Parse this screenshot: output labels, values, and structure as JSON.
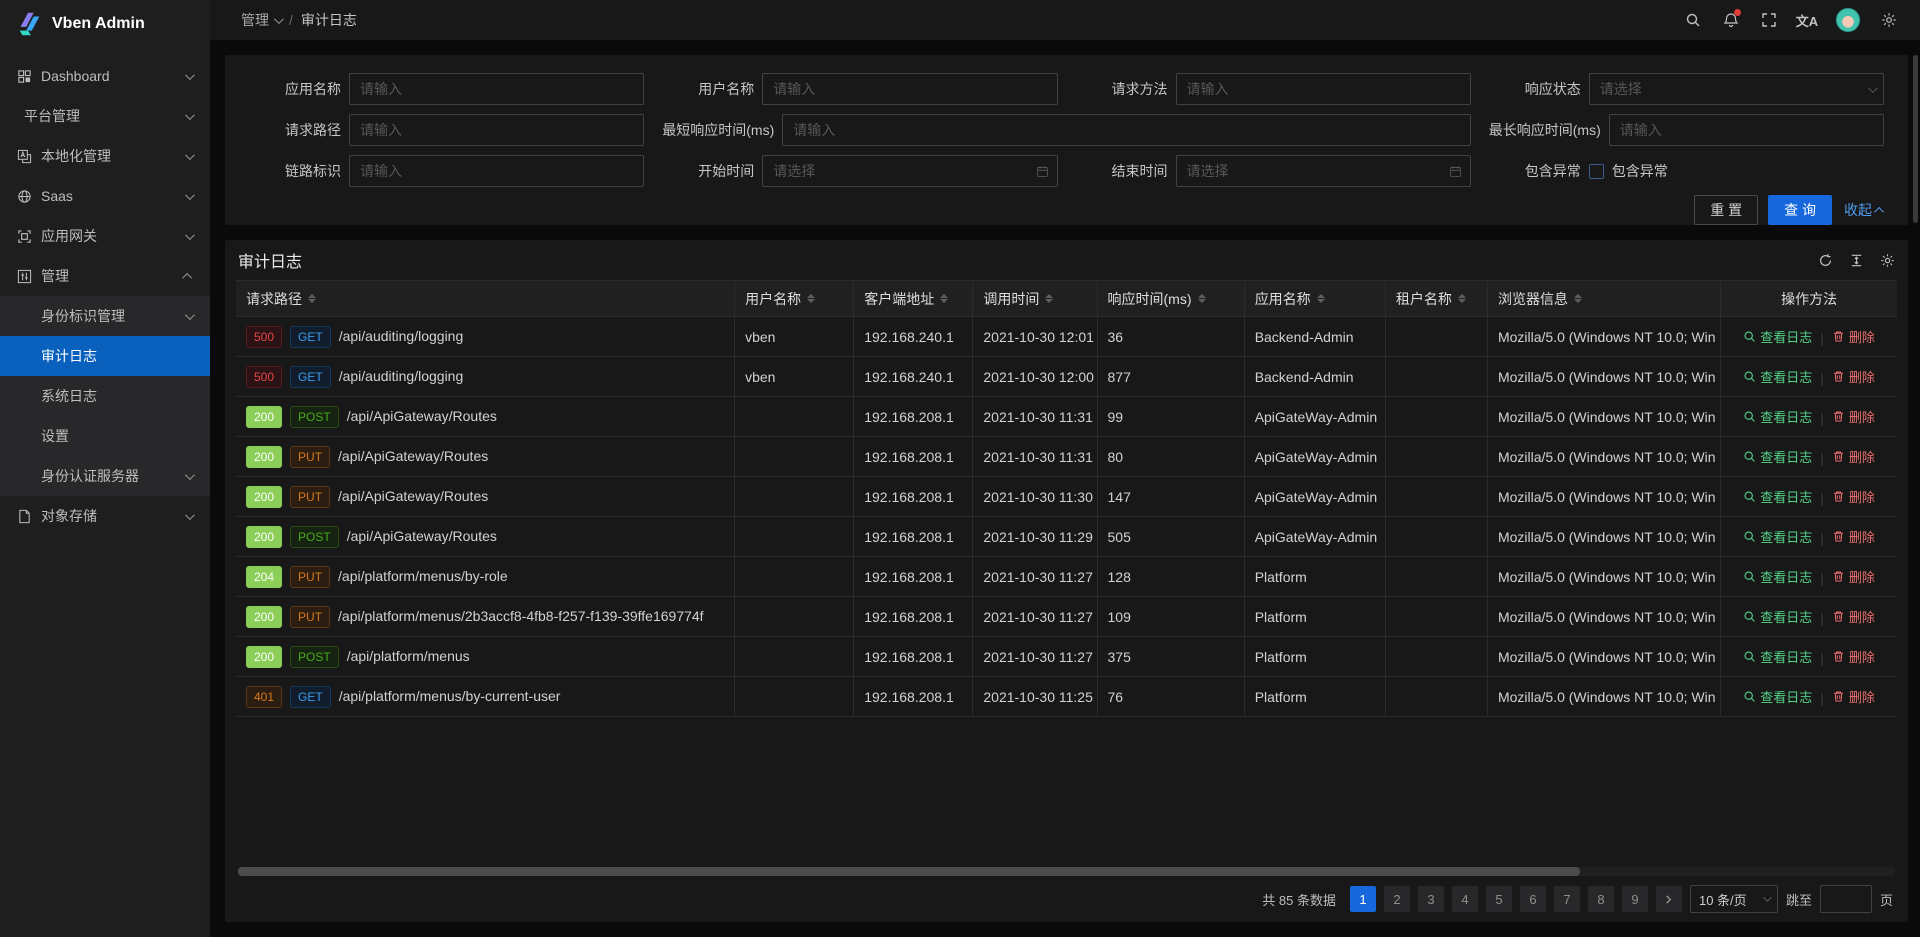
{
  "app": {
    "title": "Vben Admin"
  },
  "header": {
    "breadcrumb_parent": "管理",
    "breadcrumb_current": "审计日志",
    "translate_label": "文A"
  },
  "sidebar": {
    "items": [
      {
        "key": "dashboard",
        "label": "Dashboard",
        "icon": "grid-icon",
        "chevron": "down"
      },
      {
        "key": "platform",
        "label": "平台管理",
        "icon": "",
        "chevron": "down"
      },
      {
        "key": "localization",
        "label": "本地化管理",
        "icon": "locale-icon",
        "chevron": "down"
      },
      {
        "key": "saas",
        "label": "Saas",
        "icon": "globe-icon",
        "chevron": "down"
      },
      {
        "key": "gateway",
        "label": "应用网关",
        "icon": "gateway-icon",
        "chevron": "down"
      },
      {
        "key": "management",
        "label": "管理",
        "icon": "sliders-icon",
        "chevron": "up",
        "children": [
          {
            "key": "identity",
            "label": "身份标识管理",
            "chevron": "down"
          },
          {
            "key": "audit-log",
            "label": "审计日志",
            "active": true
          },
          {
            "key": "system-log",
            "label": "系统日志"
          },
          {
            "key": "settings",
            "label": "设置"
          },
          {
            "key": "auth-server",
            "label": "身份认证服务器",
            "chevron": "down"
          }
        ]
      },
      {
        "key": "object-storage",
        "label": "对象存储",
        "icon": "file-icon",
        "chevron": "down"
      }
    ]
  },
  "filter": {
    "app_name": {
      "label": "应用名称",
      "placeholder": "请输入"
    },
    "user_name": {
      "label": "用户名称",
      "placeholder": "请输入"
    },
    "http_method": {
      "label": "请求方法",
      "placeholder": "请输入"
    },
    "response_status": {
      "label": "响应状态",
      "placeholder": "请选择"
    },
    "request_path": {
      "label": "请求路径",
      "placeholder": "请输入"
    },
    "min_response_time": {
      "label": "最短响应时间(ms)",
      "placeholder": "请输入"
    },
    "max_response_time": {
      "label": "最长响应时间(ms)",
      "placeholder": "请输入"
    },
    "trace_id": {
      "label": "链路标识",
      "placeholder": "请输入"
    },
    "start_time": {
      "label": "开始时间",
      "placeholder": "请选择"
    },
    "end_time": {
      "label": "结束时间",
      "placeholder": "请选择"
    },
    "include_exception": {
      "label": "包含异常",
      "checkbox_label": "包含异常",
      "checked": false
    },
    "reset_label": "重 置",
    "query_label": "查 询",
    "collapse_label": "收起"
  },
  "table": {
    "title": "审计日志",
    "columns": [
      {
        "label": "请求路径",
        "sortable": true
      },
      {
        "label": "用户名称",
        "sortable": true
      },
      {
        "label": "客户端地址",
        "sortable": true
      },
      {
        "label": "调用时间",
        "sortable": true
      },
      {
        "label": "响应时间(ms)",
        "sortable": true
      },
      {
        "label": "应用名称",
        "sortable": true
      },
      {
        "label": "租户名称",
        "sortable": true
      },
      {
        "label": "浏览器信息",
        "sortable": true
      },
      {
        "label": "操作方法",
        "sortable": false
      }
    ],
    "actions": {
      "view": "查看日志",
      "delete": "删除"
    },
    "rows": [
      {
        "status": "500",
        "status_type": "error",
        "method": "GET",
        "method_type": "blue",
        "path": "/api/auditing/logging",
        "user": "vben",
        "client": "192.168.240.1",
        "time": "2021-10-30 12:01",
        "duration": "36",
        "app": "Backend-Admin",
        "tenant": "",
        "browser": "Mozilla/5.0 (Windows NT 10.0; Win"
      },
      {
        "status": "500",
        "status_type": "error",
        "method": "GET",
        "method_type": "blue",
        "path": "/api/auditing/logging",
        "user": "vben",
        "client": "192.168.240.1",
        "time": "2021-10-30 12:00",
        "duration": "877",
        "app": "Backend-Admin",
        "tenant": "",
        "browser": "Mozilla/5.0 (Windows NT 10.0; Win"
      },
      {
        "status": "200",
        "status_type": "success",
        "method": "POST",
        "method_type": "green",
        "path": "/api/ApiGateway/Routes",
        "user": "",
        "client": "192.168.208.1",
        "time": "2021-10-30 11:31",
        "duration": "99",
        "app": "ApiGateWay-Admin",
        "tenant": "",
        "browser": "Mozilla/5.0 (Windows NT 10.0; Win"
      },
      {
        "status": "200",
        "status_type": "success",
        "method": "PUT",
        "method_type": "warning",
        "path": "/api/ApiGateway/Routes",
        "user": "",
        "client": "192.168.208.1",
        "time": "2021-10-30 11:31",
        "duration": "80",
        "app": "ApiGateWay-Admin",
        "tenant": "",
        "browser": "Mozilla/5.0 (Windows NT 10.0; Win"
      },
      {
        "status": "200",
        "status_type": "success",
        "method": "PUT",
        "method_type": "warning",
        "path": "/api/ApiGateway/Routes",
        "user": "",
        "client": "192.168.208.1",
        "time": "2021-10-30 11:30",
        "duration": "147",
        "app": "ApiGateWay-Admin",
        "tenant": "",
        "browser": "Mozilla/5.0 (Windows NT 10.0; Win"
      },
      {
        "status": "200",
        "status_type": "success",
        "method": "POST",
        "method_type": "green",
        "path": "/api/ApiGateway/Routes",
        "user": "",
        "client": "192.168.208.1",
        "time": "2021-10-30 11:29",
        "duration": "505",
        "app": "ApiGateWay-Admin",
        "tenant": "",
        "browser": "Mozilla/5.0 (Windows NT 10.0; Win"
      },
      {
        "status": "204",
        "status_type": "success",
        "method": "PUT",
        "method_type": "warning",
        "path": "/api/platform/menus/by-role",
        "user": "",
        "client": "192.168.208.1",
        "time": "2021-10-30 11:27",
        "duration": "128",
        "app": "Platform",
        "tenant": "",
        "browser": "Mozilla/5.0 (Windows NT 10.0; Win"
      },
      {
        "status": "200",
        "status_type": "success",
        "method": "PUT",
        "method_type": "warning",
        "path": "/api/platform/menus/2b3accf8-4fb8-f257-f139-39ffe169774f",
        "user": "",
        "client": "192.168.208.1",
        "time": "2021-10-30 11:27",
        "duration": "109",
        "app": "Platform",
        "tenant": "",
        "browser": "Mozilla/5.0 (Windows NT 10.0; Win"
      },
      {
        "status": "200",
        "status_type": "success",
        "method": "POST",
        "method_type": "green",
        "path": "/api/platform/menus",
        "user": "",
        "client": "192.168.208.1",
        "time": "2021-10-30 11:27",
        "duration": "375",
        "app": "Platform",
        "tenant": "",
        "browser": "Mozilla/5.0 (Windows NT 10.0; Win"
      },
      {
        "status": "401",
        "status_type": "warning",
        "method": "GET",
        "method_type": "blue",
        "path": "/api/platform/menus/by-current-user",
        "user": "",
        "client": "192.168.208.1",
        "time": "2021-10-30 11:25",
        "duration": "76",
        "app": "Platform",
        "tenant": "",
        "browser": "Mozilla/5.0 (Windows NT 10.0; Win"
      }
    ]
  },
  "pagination": {
    "total_text": "共 85 条数据",
    "pages": [
      "1",
      "2",
      "3",
      "4",
      "5",
      "6",
      "7",
      "8",
      "9"
    ],
    "active_page": "1",
    "page_size": "10 条/页",
    "jump_label": "跳至",
    "jump_suffix": "页"
  }
}
